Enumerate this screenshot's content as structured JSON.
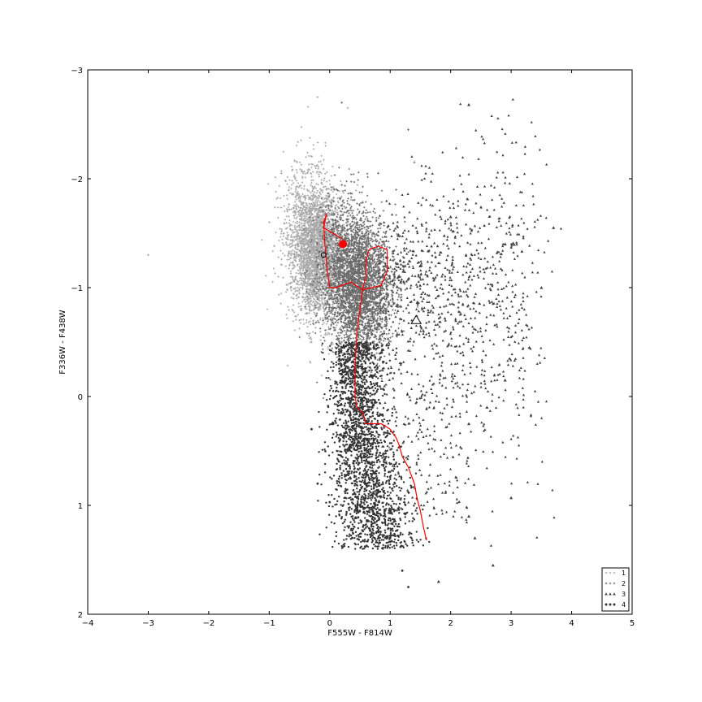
{
  "chart_data": {
    "type": "scatter",
    "title": "",
    "xlabel": "F555W - F814W",
    "ylabel": "F336W - F438W",
    "xlim": [
      -4,
      5
    ],
    "ylim": [
      2,
      -3
    ],
    "y_inverted": true,
    "grid": false,
    "legend_position": "bottom-right",
    "x_ticks": [
      "−4",
      "−3",
      "−2",
      "−1",
      "0",
      "1",
      "2",
      "3",
      "4",
      "5"
    ],
    "y_ticks": [
      "−3",
      "−2",
      "−1",
      "0",
      "1",
      "2"
    ],
    "series": [
      {
        "name": "1",
        "marker": "plus",
        "color": "#a8a8a8",
        "description": "dense blue cloud",
        "center": [
          -0.2,
          -1.35
        ],
        "spread": [
          0.25,
          0.35
        ],
        "count_estimate": 3500,
        "sample_points": [
          [
            -3.0,
            -1.3
          ],
          [
            -0.8,
            -2.05
          ],
          [
            -1.0,
            -1.6
          ],
          [
            -0.6,
            -0.9
          ],
          [
            -0.2,
            -2.75
          ],
          [
            -0.3,
            -0.5
          ],
          [
            0.3,
            -2.65
          ],
          [
            -0.1,
            -1.7
          ],
          [
            -0.4,
            -1.2
          ]
        ]
      },
      {
        "name": "2",
        "marker": "plus",
        "color": "#686868",
        "description": "dense middle cloud",
        "center": [
          0.45,
          -1.05
        ],
        "spread": [
          0.3,
          0.35
        ],
        "count_estimate": 3500,
        "sample_points": [
          [
            0.2,
            -2.7
          ],
          [
            1.3,
            -2.45
          ],
          [
            1.4,
            -2.15
          ],
          [
            0.8,
            -2.05
          ],
          [
            1.1,
            -1.9
          ],
          [
            0.9,
            -0.6
          ],
          [
            0.2,
            -0.5
          ],
          [
            0.6,
            -1.4
          ]
        ]
      },
      {
        "name": "3",
        "marker": "triangle",
        "color": "#404040",
        "description": "red fan to upper right",
        "count_estimate": 900,
        "sample_points": [
          [
            2.3,
            -2.68
          ],
          [
            3.7,
            -1.55
          ],
          [
            3.5,
            -1.0
          ],
          [
            3.3,
            -0.45
          ],
          [
            2.9,
            -0.15
          ],
          [
            2.6,
            0.1
          ],
          [
            2.3,
            0.25
          ],
          [
            1.8,
            1.7
          ],
          [
            2.3,
            1.1
          ],
          [
            2.7,
            1.55
          ],
          [
            3.0,
            0.93
          ],
          [
            2.4,
            1.3
          ],
          [
            2.0,
            -1.65
          ],
          [
            1.5,
            -1.2
          ],
          [
            2.9,
            -1.4
          ]
        ]
      },
      {
        "name": "4",
        "marker": "circle",
        "color": "#333333",
        "description": "lower sequence",
        "count_estimate": 2000,
        "sample_points": [
          [
            0.4,
            0.0
          ],
          [
            0.3,
            0.5
          ],
          [
            0.6,
            0.8
          ],
          [
            0.8,
            1.1
          ],
          [
            1.2,
            1.6
          ],
          [
            1.3,
            1.75
          ],
          [
            -0.3,
            0.3
          ],
          [
            -0.2,
            0.8
          ],
          [
            0.0,
            0.97
          ],
          [
            0.5,
            -0.4
          ],
          [
            1.0,
            1.3
          ]
        ]
      }
    ],
    "model_track": {
      "color": "#ff0000",
      "points": [
        [
          -0.05,
          -1.68
        ],
        [
          -0.1,
          -1.6
        ],
        [
          -0.08,
          -1.4
        ],
        [
          -0.05,
          -1.2
        ],
        [
          0.0,
          -1.0
        ],
        [
          0.1,
          -1.0
        ],
        [
          0.35,
          -1.05
        ],
        [
          0.55,
          -0.98
        ],
        [
          0.7,
          -1.0
        ],
        [
          0.85,
          -1.02
        ],
        [
          0.95,
          -1.15
        ],
        [
          0.95,
          -1.35
        ],
        [
          0.8,
          -1.38
        ],
        [
          0.65,
          -1.35
        ],
        [
          0.6,
          -1.25
        ],
        [
          0.6,
          -1.1
        ],
        [
          0.55,
          -1.0
        ],
        [
          0.5,
          -0.8
        ],
        [
          0.45,
          -0.6
        ],
        [
          0.43,
          -0.4
        ],
        [
          0.42,
          -0.2
        ],
        [
          0.42,
          0.0
        ],
        [
          0.45,
          0.1
        ],
        [
          0.55,
          0.15
        ],
        [
          0.6,
          0.25
        ],
        [
          0.85,
          0.25
        ],
        [
          1.0,
          0.3
        ],
        [
          1.1,
          0.38
        ],
        [
          1.15,
          0.45
        ],
        [
          1.2,
          0.55
        ],
        [
          1.3,
          0.65
        ],
        [
          1.4,
          0.8
        ],
        [
          1.45,
          0.95
        ],
        [
          1.5,
          1.05
        ],
        [
          1.55,
          1.2
        ],
        [
          1.6,
          1.32
        ]
      ],
      "start_hook": [
        [
          -0.05,
          -1.68
        ],
        [
          -0.1,
          -1.55
        ],
        [
          0.05,
          -1.5
        ],
        [
          0.2,
          -1.45
        ]
      ]
    },
    "markers": [
      {
        "type": "filled-circle",
        "color": "#ff0000",
        "x": 0.22,
        "y": -1.4
      },
      {
        "type": "open-circle",
        "color": "#000000",
        "x": -0.1,
        "y": -1.3
      },
      {
        "type": "open-triangle",
        "color": "#000000",
        "x": 1.43,
        "y": -0.7
      }
    ],
    "legend": [
      {
        "label": "1",
        "marker": "plus",
        "color": "#a8a8a8"
      },
      {
        "label": "2",
        "marker": "plus",
        "color": "#686868"
      },
      {
        "label": "3",
        "marker": "triangle",
        "color": "#404040"
      },
      {
        "label": "4",
        "marker": "circle",
        "color": "#333333"
      }
    ]
  }
}
